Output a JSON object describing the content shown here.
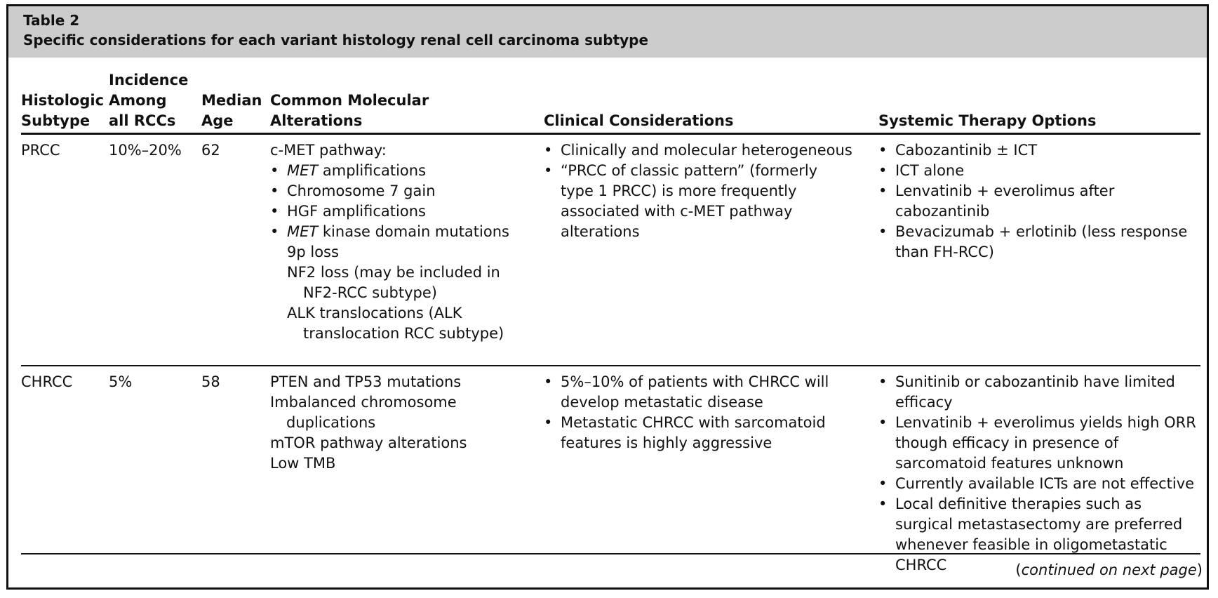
{
  "caption": {
    "label": "Table 2",
    "title": "Specific considerations for each variant histology renal cell carcinoma subtype"
  },
  "columns": [
    [
      "Histologic",
      "Subtype"
    ],
    [
      "Incidence",
      "Among",
      "all RCCs"
    ],
    [
      "Median",
      "Age"
    ],
    [
      "Common Molecular",
      "Alterations"
    ],
    [
      "Clinical Considerations"
    ],
    [
      "Systemic Therapy Options"
    ]
  ],
  "rows": [
    {
      "subtype": "PRCC",
      "incidence": "10%–20%",
      "age": "62",
      "molecular_heading": "c-MET pathway:",
      "molecular_bullets": [
        {
          "em": "MET",
          "text": " amplifications"
        },
        {
          "em": "",
          "text": "Chromosome 7 gain"
        },
        {
          "em": "",
          "text": "HGF amplifications"
        },
        {
          "em": "MET",
          "text": " kinase domain mutations"
        }
      ],
      "molecular_plain": [
        "9p loss",
        "NF2 loss (may be included in NF2-RCC subtype)",
        "ALK translocations (ALK translocation RCC subtype)"
      ],
      "clinical": [
        "Clinically and molecular heterogeneous",
        "“PRCC of classic pattern” (formerly type 1 PRCC) is more frequently associated with c-MET pathway alterations"
      ],
      "therapy": [
        "Cabozantinib ± ICT",
        "ICT alone",
        "Lenvatinib + everolimus after cabozantinib",
        "Bevacizumab + erlotinib (less response than FH-RCC)"
      ]
    },
    {
      "subtype": "CHRCC",
      "incidence": "5%",
      "age": "58",
      "molecular_items": [
        "PTEN and TP53 mutations",
        "Imbalanced chromosome duplications",
        "mTOR pathway alterations",
        "Low TMB"
      ],
      "clinical": [
        "5%–10% of patients with CHRCC will develop metastatic disease",
        "Metastatic CHRCC with sarcomatoid features is highly aggressive"
      ],
      "therapy": [
        "Sunitinib or cabozantinib have limited efficacy",
        "Lenvatinib + everolimus yields high ORR though efficacy in presence of sarcomatoid features unknown",
        "Currently available ICTs are not effective",
        "Local definitive therapies such as surgical metastasectomy are preferred whenever feasible in oligometastatic CHRCC"
      ]
    }
  ],
  "footer": {
    "open": "(",
    "text": "continued on next page",
    "close": ")"
  }
}
